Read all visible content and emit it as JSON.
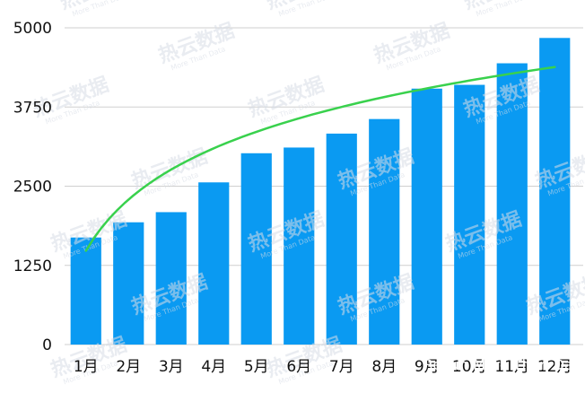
{
  "chart_data": {
    "type": "bar",
    "title": "",
    "xlabel": "",
    "ylabel": "",
    "categories": [
      "1月",
      "2月",
      "3月",
      "4月",
      "5月",
      "6月",
      "7月",
      "8月",
      "9月",
      "10月",
      "11月",
      "12月"
    ],
    "values": [
      1690,
      1930,
      2090,
      2560,
      3020,
      3110,
      3330,
      3560,
      4040,
      4100,
      4440,
      4840
    ],
    "ylim": [
      0,
      5000
    ],
    "yticks": [
      0,
      1250,
      2500,
      3750,
      5000
    ],
    "ytick_labels": [
      "0",
      "1250",
      "2500",
      "3750",
      "5000"
    ],
    "trendline": {
      "type": "logarithmic",
      "start": 1480,
      "end": 4380
    },
    "grid": true,
    "legend": "none",
    "colors": {
      "bar": "#0a9af2",
      "trend": "#39d14d",
      "grid": "#cfcfcf"
    }
  },
  "watermark": {
    "text": "热云数据",
    "subtext": "More Than Data"
  },
  "credit": "Reyun More Than Data"
}
